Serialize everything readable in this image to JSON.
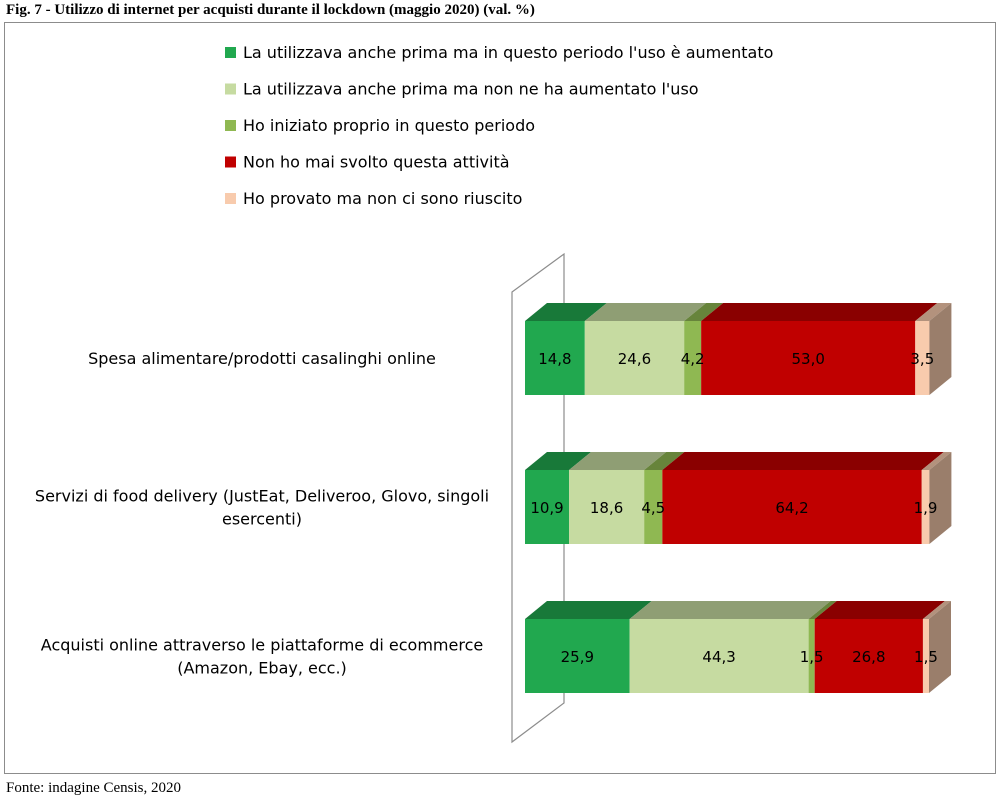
{
  "title": "Fig. 7 - Utilizzo di internet per acquisti durante il lockdown (maggio 2020) (val. %)",
  "source": "Fonte: indagine Censis, 2020",
  "chart_data": {
    "type": "bar",
    "stacked": true,
    "orientation": "horizontal",
    "three_d": true,
    "legend_position": "top",
    "categories": [
      "Spesa alimentare/prodotti casalinghi online",
      "Servizi di food delivery (JustEat, Deliveroo, Glovo, singoli esercenti)",
      "Acquisti online attraverso le piattaforme di ecommerce (Amazon, Ebay, ecc.)"
    ],
    "category_lines": [
      [
        "Spesa alimentare/prodotti casalinghi online"
      ],
      [
        "Servizi di food delivery (JustEat, Deliveroo, Glovo, singoli",
        "esercenti)"
      ],
      [
        "Acquisti online attraverso le piattaforme di ecommerce",
        "(Amazon, Ebay, ecc.)"
      ]
    ],
    "series": [
      {
        "name": "La utilizzava anche prima ma in questo periodo l'uso è aumentato",
        "values": [
          14.8,
          10.9,
          25.9
        ],
        "labels": [
          "14,8",
          "10,9",
          "25,9"
        ],
        "color": "#21a84f"
      },
      {
        "name": "La utilizzava anche prima ma non ne ha aumentato l'uso",
        "values": [
          24.6,
          18.6,
          44.3
        ],
        "labels": [
          "24,6",
          "18,6",
          "44,3"
        ],
        "color": "#c6dba1"
      },
      {
        "name": "Ho iniziato proprio in questo periodo",
        "values": [
          4.2,
          4.5,
          1.5
        ],
        "labels": [
          "4,2",
          "4,5",
          "1,5"
        ],
        "color": "#8fb852"
      },
      {
        "name": "Non ho mai svolto questa attività",
        "values": [
          53.0,
          64.2,
          26.8
        ],
        "labels": [
          "53,0",
          "64,2",
          "26,8"
        ],
        "color": "#c00000"
      },
      {
        "name": "Ho provato ma non ci sono riuscito",
        "values": [
          3.5,
          1.9,
          1.5
        ],
        "labels": [
          "3,5",
          "1,9",
          "1,5"
        ],
        "color": "#f8cbad"
      }
    ],
    "xlim": [
      0,
      100
    ],
    "grid": false
  }
}
